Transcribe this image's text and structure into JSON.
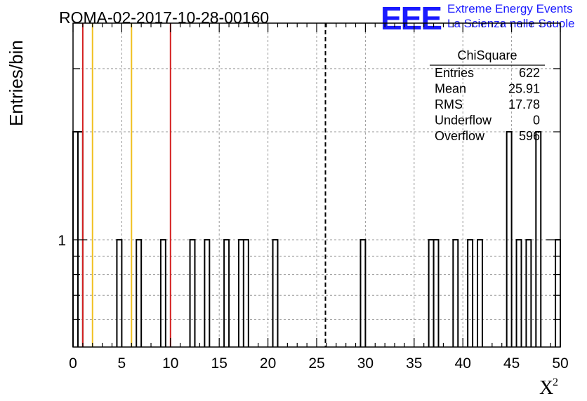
{
  "title": "ROMA-02-2017-10-28-00160",
  "logo": {
    "mark": "EEE",
    "line1": "Extreme Energy Events",
    "line2": "La Scienza nelle Scuole",
    "color": "#1a1aff"
  },
  "stats": {
    "title": "ChiSquare",
    "rows": [
      {
        "label": "Entries",
        "value": "622"
      },
      {
        "label": "Mean",
        "value": "25.91"
      },
      {
        "label": "RMS",
        "value": "17.78"
      },
      {
        "label": "Underflow",
        "value": "0"
      },
      {
        "label": "Overflow",
        "value": "596"
      }
    ]
  },
  "chart_data": {
    "type": "bar",
    "title": "ROMA-02-2017-10-28-00160",
    "xlabel": "X",
    "xlabel_superscript": "2",
    "ylabel": "Entries/bin",
    "xlim": [
      0,
      50
    ],
    "y_scale": "log",
    "grid": true,
    "bin_width": 0.5,
    "x_ticks": [
      "0",
      "5",
      "10",
      "15",
      "20",
      "25",
      "30",
      "35",
      "40",
      "45",
      "50"
    ],
    "y_ticks": [
      "1"
    ],
    "bins": [
      {
        "x": 0.0,
        "y": 2
      },
      {
        "x": 0.5,
        "y": 2
      },
      {
        "x": 4.5,
        "y": 1
      },
      {
        "x": 6.5,
        "y": 1
      },
      {
        "x": 9.0,
        "y": 1
      },
      {
        "x": 12.0,
        "y": 1
      },
      {
        "x": 13.5,
        "y": 1
      },
      {
        "x": 15.5,
        "y": 1
      },
      {
        "x": 17.0,
        "y": 1
      },
      {
        "x": 17.5,
        "y": 1
      },
      {
        "x": 20.5,
        "y": 1
      },
      {
        "x": 29.5,
        "y": 1
      },
      {
        "x": 36.5,
        "y": 1
      },
      {
        "x": 37.0,
        "y": 1
      },
      {
        "x": 39.0,
        "y": 1
      },
      {
        "x": 40.5,
        "y": 1
      },
      {
        "x": 41.5,
        "y": 1
      },
      {
        "x": 44.5,
        "y": 2
      },
      {
        "x": 45.5,
        "y": 1
      },
      {
        "x": 46.5,
        "y": 1
      },
      {
        "x": 47.5,
        "y": 2
      },
      {
        "x": 49.5,
        "y": 1
      }
    ],
    "reference_lines": [
      {
        "x": 1.0,
        "color": "#d42020",
        "style": "solid"
      },
      {
        "x": 2.0,
        "color": "#f0c020",
        "style": "solid"
      },
      {
        "x": 6.0,
        "color": "#f0c020",
        "style": "solid"
      },
      {
        "x": 10.0,
        "color": "#d42020",
        "style": "solid"
      },
      {
        "x": 25.9,
        "color": "#000000",
        "style": "dashed"
      }
    ]
  }
}
